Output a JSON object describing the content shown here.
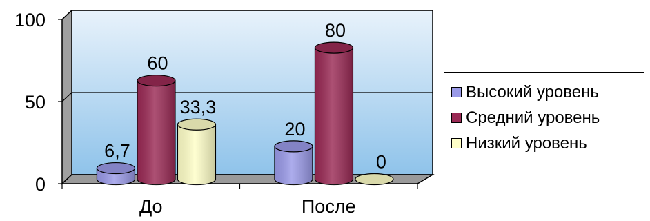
{
  "chart_data": {
    "type": "bar",
    "style": "3d-cylinder",
    "categories": [
      "До",
      "После"
    ],
    "series": [
      {
        "name": "Высокий уровень",
        "values": [
          6.7,
          20
        ],
        "labels": [
          "6,7",
          "20"
        ],
        "color": "#9a9ae8"
      },
      {
        "name": "Средний уровень",
        "values": [
          60,
          80
        ],
        "labels": [
          "60",
          "80"
        ],
        "color": "#9a2a55"
      },
      {
        "name": "Низкий уровень",
        "values": [
          33.3,
          0
        ],
        "labels": [
          "33,3",
          "0"
        ],
        "color": "#ffffc8"
      }
    ],
    "yticks": [
      "0",
      "50",
      "100"
    ],
    "ylim": [
      0,
      100
    ],
    "grid": true,
    "legend": "right",
    "wall_colors": [
      "#e8f2fb",
      "#8fc3ea"
    ]
  }
}
